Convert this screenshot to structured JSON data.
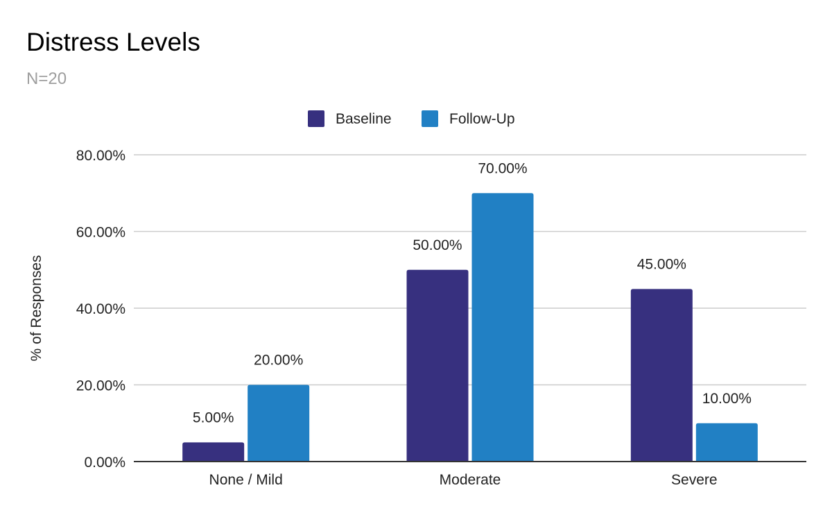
{
  "chart_data": {
    "type": "bar",
    "title": "Distress Levels",
    "subtitle": "N=20",
    "xlabel": "",
    "ylabel": "% of Responses",
    "categories": [
      "None / Mild",
      "Moderate",
      "Severe"
    ],
    "series": [
      {
        "name": "Baseline",
        "color": "#37307f",
        "values": [
          5,
          50,
          45
        ],
        "labels": [
          "5.00%",
          "50.00%",
          "45.00%"
        ]
      },
      {
        "name": "Follow-Up",
        "color": "#2180c4",
        "values": [
          20,
          70,
          10
        ],
        "labels": [
          "20.00%",
          "70.00%",
          "10.00%"
        ]
      }
    ],
    "ylim": [
      0,
      80
    ],
    "yticks": [
      0,
      20,
      40,
      60,
      80
    ],
    "ytick_labels": [
      "0.00%",
      "20.00%",
      "40.00%",
      "60.00%",
      "80.00%"
    ],
    "grid": true,
    "legend_position": "top-center"
  }
}
